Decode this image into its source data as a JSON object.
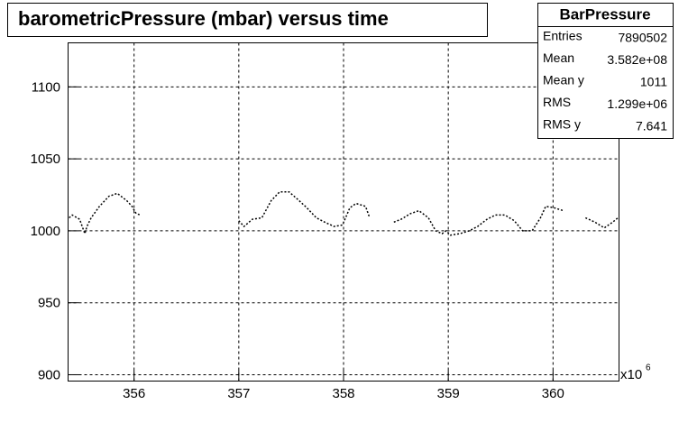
{
  "chart_data": {
    "type": "line",
    "title": "barometricPressure (mbar) versus time",
    "x_multiplier": {
      "base": "x10",
      "exponent": "6"
    },
    "xlim": [
      355.37,
      360.63
    ],
    "ylim": [
      895.6,
      1130.6
    ],
    "xticks": [
      356,
      357,
      358,
      359,
      360
    ],
    "yticks": [
      900,
      950,
      1000,
      1050,
      1100
    ],
    "grid": true,
    "series": [
      {
        "color": "#000000",
        "x": [
          355.38,
          355.41,
          355.48,
          355.53,
          355.55,
          355.59,
          355.67,
          355.76,
          355.84,
          355.93,
          355.98,
          356.02,
          356.06,
          null,
          357.0,
          357.05,
          357.13,
          357.22,
          357.31,
          357.39,
          357.48,
          357.56,
          357.65,
          357.74,
          357.82,
          357.91,
          357.99,
          358.06,
          358.12,
          358.21,
          358.25,
          null,
          358.48,
          358.55,
          358.64,
          358.72,
          358.81,
          358.88,
          358.94,
          358.98,
          359.02,
          359.11,
          359.2,
          359.28,
          359.37,
          359.45,
          359.54,
          359.63,
          359.71,
          359.8,
          359.88,
          359.93,
          360.01,
          360.1,
          null,
          360.31,
          360.4,
          360.49,
          360.57,
          360.62
        ],
        "values": [
          1009,
          1011,
          1008,
          998,
          1003,
          1009,
          1017,
          1024,
          1026,
          1021,
          1017,
          1012,
          1011,
          null,
          1007,
          1003,
          1008,
          1009,
          1021,
          1027,
          1027,
          1022,
          1016,
          1009,
          1006,
          1003,
          1004,
          1016,
          1019,
          1017,
          1009,
          null,
          1006,
          1008,
          1012,
          1014,
          1009,
          1000,
          998,
          1000,
          997,
          998,
          1000,
          1003,
          1008,
          1011,
          1011,
          1007,
          1000,
          1000,
          1009,
          1017,
          1016,
          1014,
          null,
          1009,
          1006,
          1002,
          1006,
          1009
        ]
      }
    ]
  },
  "stats_box": {
    "title": "BarPressure",
    "rows": [
      {
        "label": "Entries",
        "value": "7890502"
      },
      {
        "label": "Mean",
        "value": "3.582e+08"
      },
      {
        "label": "Mean y",
        "value": "1011"
      },
      {
        "label": "RMS",
        "value": "1.299e+06"
      },
      {
        "label": "RMS y",
        "value": "7.641"
      }
    ]
  }
}
